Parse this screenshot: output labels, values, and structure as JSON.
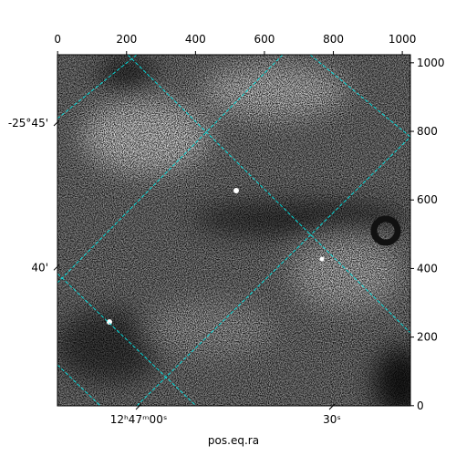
{
  "chart_data": {
    "type": "image",
    "xlabel": "pos.eq.ra",
    "xlim": [
      -0.5,
      1023.5
    ],
    "ylim": [
      -0.5,
      1023.5
    ],
    "xticks": [
      0,
      200,
      400,
      600,
      800,
      1000
    ],
    "yticks": [
      0,
      200,
      400,
      600,
      800,
      1000
    ],
    "ra_ticks": [
      {
        "value": 235,
        "label": "12ʰ47ᵐ00ˢ"
      },
      {
        "value": 796,
        "label": "30ˢ"
      }
    ],
    "dec_ticks": [
      {
        "value": 824,
        "label": "-25°45'"
      },
      {
        "value": 403,
        "label": "40'"
      }
    ],
    "grid_color": "#00e5e5"
  }
}
